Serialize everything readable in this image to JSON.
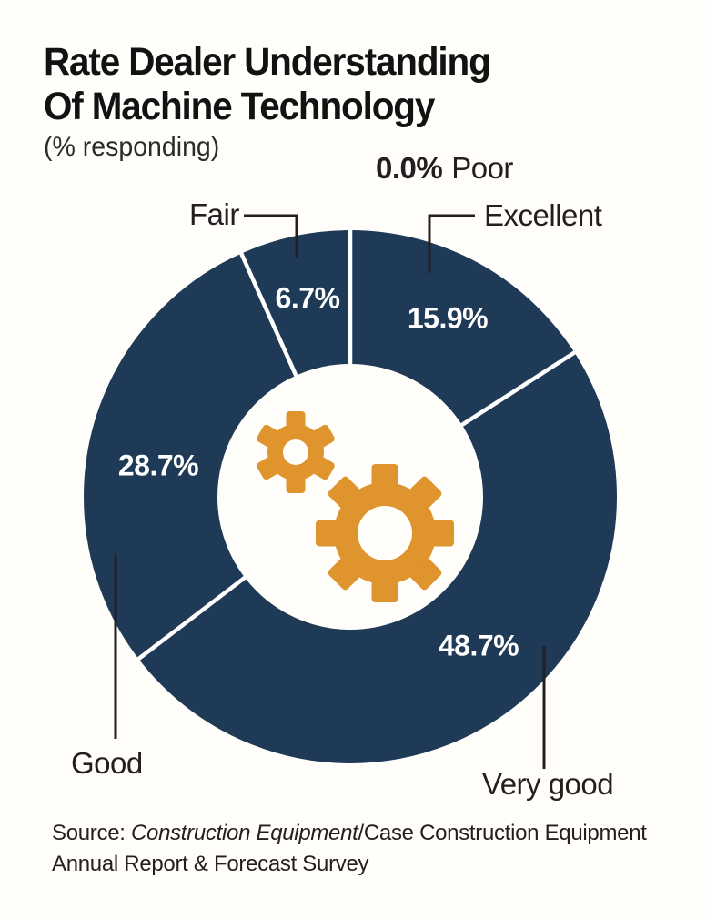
{
  "title": {
    "line1": "Rate Dealer Understanding",
    "line2": "Of Machine Technology",
    "subtitle": "(% responding)"
  },
  "chart_data": {
    "type": "pie",
    "variant": "donut",
    "title": "Rate Dealer Understanding Of Machine Technology",
    "unit": "% responding",
    "order_clockwise_from_top": [
      "Excellent",
      "Very good",
      "Good",
      "Fair",
      "Poor"
    ],
    "series": [
      {
        "label": "Excellent",
        "value": 15.9
      },
      {
        "label": "Very good",
        "value": 48.7
      },
      {
        "label": "Good",
        "value": 28.7
      },
      {
        "label": "Fair",
        "value": 6.7
      },
      {
        "label": "Poor",
        "value": 0.0
      }
    ],
    "colors": {
      "ring": "#1f3a57",
      "separator": "#ffffff",
      "gear": "#e0942e",
      "leader": "#231f20",
      "background": "#fffefa"
    }
  },
  "labels": {
    "poor_pct": "0.0%",
    "poor_name": "Poor",
    "excellent_name": "Excellent",
    "excellent_pct": "15.9%",
    "fair_name": "Fair",
    "fair_pct": "6.7%",
    "good_name": "Good",
    "good_pct": "28.7%",
    "verygood_name": "Very good",
    "verygood_pct": "48.7%"
  },
  "source": {
    "prefix": "Source: ",
    "italic_part": "Construction Equipment",
    "rest": "/Case Construction Equipment",
    "line2": "Annual Report & Forecast Survey"
  }
}
